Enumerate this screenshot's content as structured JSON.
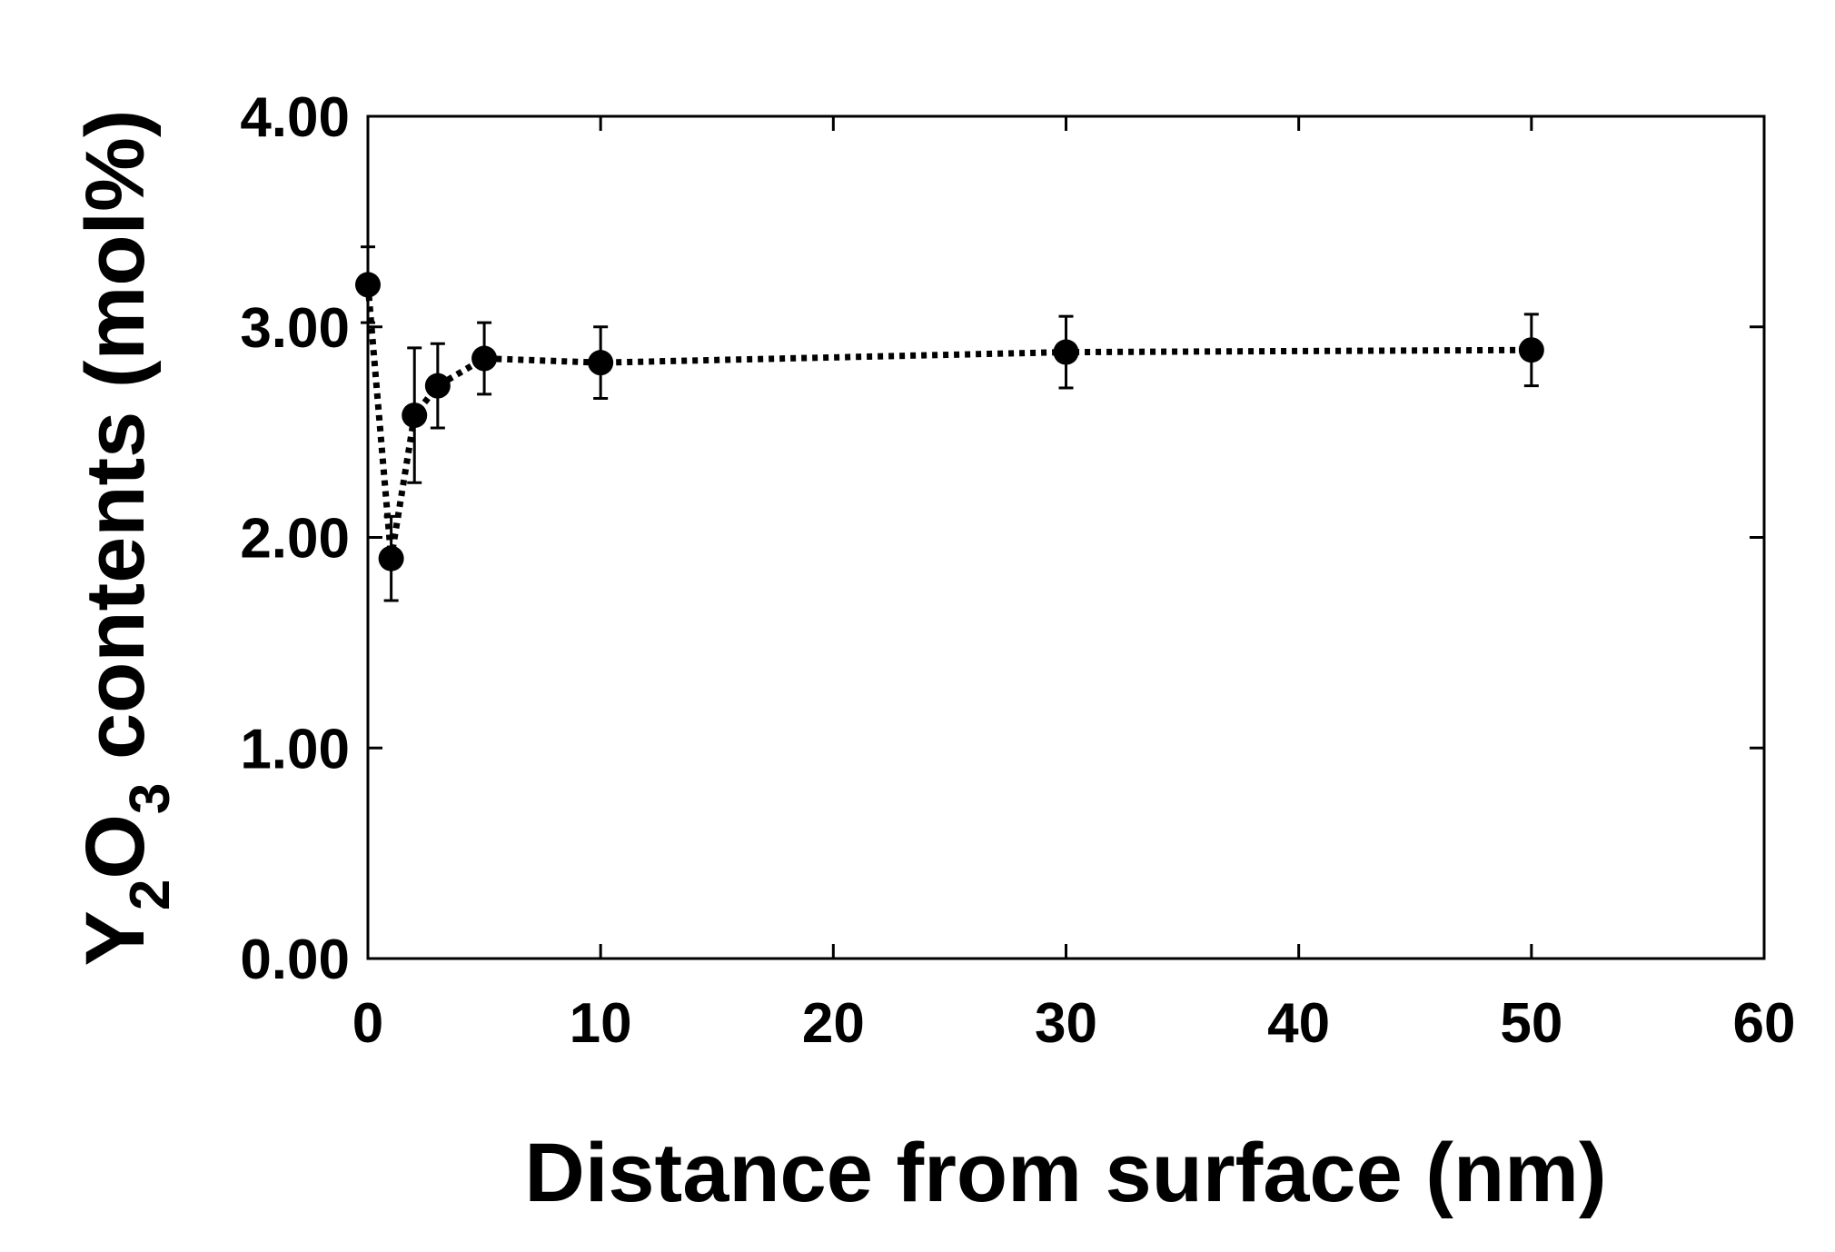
{
  "chart_data": {
    "type": "scatter",
    "title": "",
    "xlabel": "Distance from surface (nm)",
    "ylabel": {
      "parts": [
        {
          "text": "Y",
          "sub": false
        },
        {
          "text": "2",
          "sub": true
        },
        {
          "text": "O",
          "sub": false
        },
        {
          "text": "3",
          "sub": true
        },
        {
          "text": " contents (mol%)",
          "sub": false
        }
      ]
    },
    "xlim": [
      0,
      60
    ],
    "ylim": [
      0,
      4
    ],
    "xticks": [
      0,
      10,
      20,
      30,
      40,
      50,
      60
    ],
    "xtick_labels": [
      "0",
      "10",
      "20",
      "30",
      "40",
      "50",
      "60"
    ],
    "yticks": [
      0,
      1,
      2,
      3,
      4
    ],
    "ytick_labels": [
      "0.00",
      "1.00",
      "2.00",
      "3.00",
      "4.00"
    ],
    "grid": false,
    "legend": "none",
    "series": [
      {
        "line_style": "dotted",
        "color": "#000000",
        "marker": "circle",
        "x": [
          0,
          1,
          2,
          3,
          5,
          10,
          30,
          50
        ],
        "y": [
          3.2,
          1.9,
          2.58,
          2.72,
          2.85,
          2.83,
          2.88,
          2.89
        ],
        "error": [
          0.18,
          0.2,
          0.32,
          0.2,
          0.17,
          0.17,
          0.17,
          0.17
        ]
      }
    ]
  }
}
